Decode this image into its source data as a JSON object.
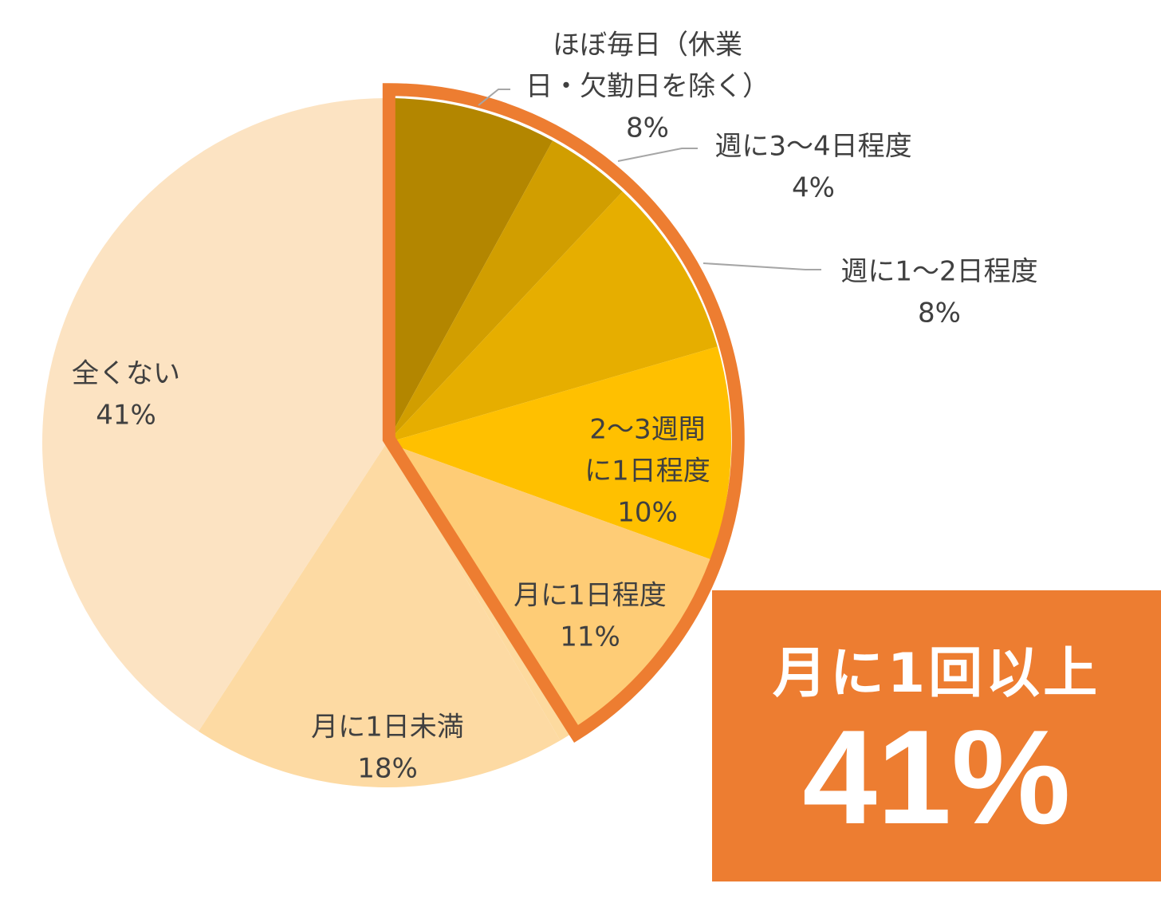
{
  "chart_data": {
    "type": "pie",
    "start_angle_deg": 0,
    "direction": "clockwise",
    "slices": [
      {
        "label": [
          "ほぼ毎日（休業",
          "日・欠勤日を除く）"
        ],
        "pct_text": "8%",
        "value": 8.0,
        "color": "#B38600",
        "label_pos": "outside-top",
        "leader": true
      },
      {
        "label": [
          "週に3～4日程度"
        ],
        "pct_text": "4%",
        "value": 4.0,
        "color": "#D19E00",
        "label_pos": "outside-right",
        "leader": true
      },
      {
        "label": [
          "週に1～2日程度"
        ],
        "pct_text": "8%",
        "value": 8.5,
        "color": "#E6AE00",
        "label_pos": "outside-right",
        "leader": true
      },
      {
        "label": [
          "2～3週間",
          "に1日程度"
        ],
        "pct_text": "10%",
        "value": 10.0,
        "color": "#FFC000",
        "label_pos": "inside"
      },
      {
        "label": [
          "月に1日程度"
        ],
        "pct_text": "11%",
        "value": 10.5,
        "color": "#FECC76",
        "label_pos": "inside"
      },
      {
        "label": [],
        "pct_text": "",
        "value": 0.6,
        "color": "#FDDA9F",
        "label_pos": "none"
      },
      {
        "label": [
          "月に1日未満"
        ],
        "pct_text": "18%",
        "value": 17.6,
        "color": "#FDDAA3",
        "label_pos": "inside"
      },
      {
        "label": [
          "全くない"
        ],
        "pct_text": "41%",
        "value": 40.8,
        "color": "#FCE3C2",
        "label_pos": "inside"
      }
    ],
    "highlight": {
      "slices": [
        0,
        1,
        2,
        3,
        4
      ],
      "outline_color": "#ED7D31"
    },
    "leader_color": "#A6A6A6"
  },
  "callout": {
    "title": "月に1回以上",
    "value": "41%",
    "background": "#ED7D31"
  }
}
